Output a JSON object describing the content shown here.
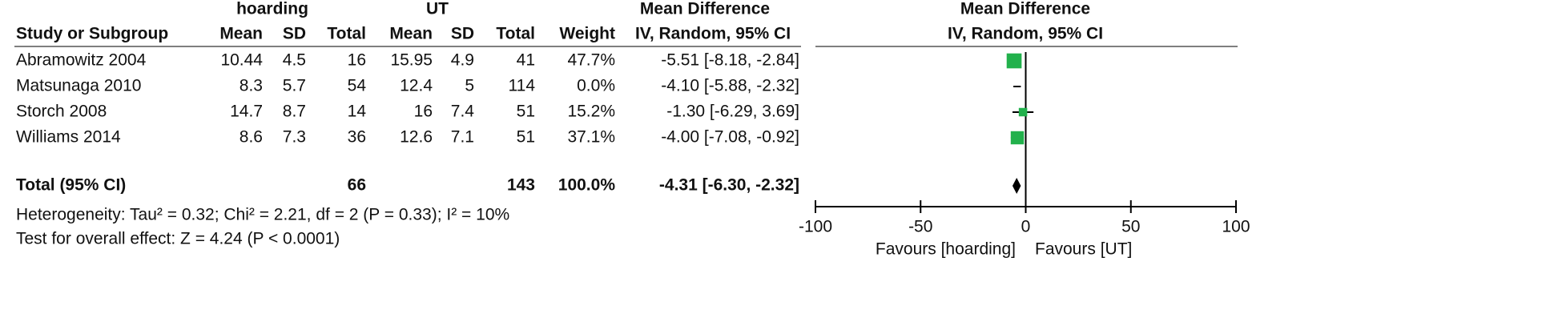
{
  "chart_data": {
    "type": "forest",
    "group_headers": [
      "hoarding",
      "UT"
    ],
    "column_headers": [
      "Study or Subgroup",
      "Mean",
      "SD",
      "Total",
      "Mean",
      "SD",
      "Total",
      "Weight"
    ],
    "effect_header": "Mean Difference",
    "effect_subheader": "IV, Random, 95% CI",
    "plot_header": "Mean Difference",
    "plot_subheader": "IV, Random, 95% CI",
    "studies": [
      {
        "name": "Abramowitz 2004",
        "cells": [
          "10.44",
          "4.5",
          "16",
          "15.95",
          "4.9",
          "41",
          "47.7%"
        ],
        "weight": 47.7,
        "md": -5.51,
        "ci": [
          -8.18,
          -2.84
        ],
        "label": "-5.51 [-8.18, -2.84]"
      },
      {
        "name": "Matsunaga 2010",
        "cells": [
          "8.3",
          "5.7",
          "54",
          "12.4",
          "5",
          "114",
          "0.0%"
        ],
        "weight": 0.0,
        "md": -4.1,
        "ci": [
          -5.88,
          -2.32
        ],
        "label": "-4.10 [-5.88, -2.32]"
      },
      {
        "name": "Storch 2008",
        "cells": [
          "14.7",
          "8.7",
          "14",
          "16",
          "7.4",
          "51",
          "15.2%"
        ],
        "weight": 15.2,
        "md": -1.3,
        "ci": [
          -6.29,
          3.69
        ],
        "label": "-1.30 [-6.29, 3.69]"
      },
      {
        "name": "Williams 2014",
        "cells": [
          "8.6",
          "7.3",
          "36",
          "12.6",
          "7.1",
          "51",
          "37.1%"
        ],
        "weight": 37.1,
        "md": -4.0,
        "ci": [
          -7.08,
          -0.92
        ],
        "label": "-4.00 [-7.08, -0.92]"
      }
    ],
    "total": {
      "name": "Total (95% CI)",
      "cells": [
        "",
        "",
        "66",
        "",
        "",
        "143",
        "100.0%"
      ],
      "md": -4.31,
      "ci": [
        -6.3,
        -2.32
      ],
      "label": "-4.31 [-6.30, -2.32]"
    },
    "notes": [
      "Heterogeneity: Tau² = 0.32; Chi² = 2.21, df = 2 (P = 0.33); I² = 10%",
      "Test for overall effect: Z = 4.24 (P < 0.0001)"
    ],
    "xlim": [
      -100,
      100
    ],
    "xticks": [
      -100,
      -50,
      0,
      50,
      100
    ],
    "favours": [
      "Favours [hoarding]",
      "Favours [UT]"
    ],
    "marker_color": "#22b14c"
  }
}
